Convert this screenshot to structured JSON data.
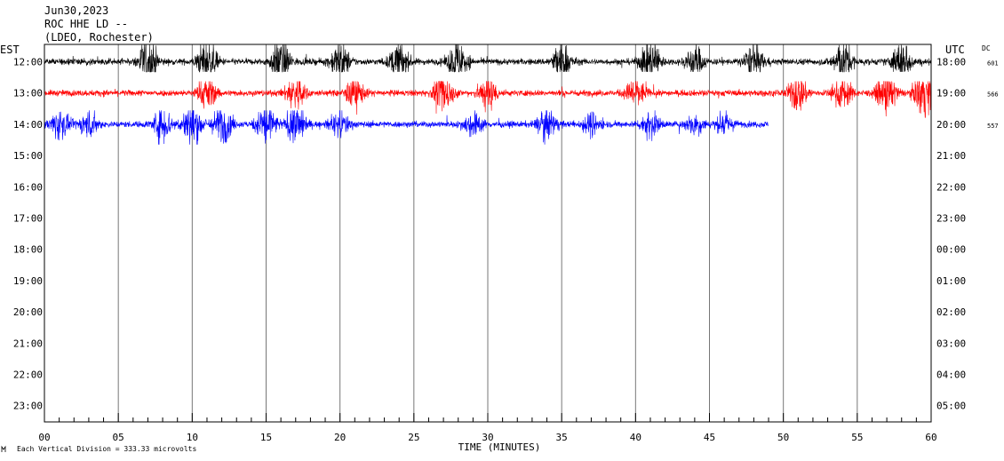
{
  "chart_data": {
    "type": "line",
    "title_lines": [
      "Jun30,2023",
      "ROC HHE LD --",
      "(LDEO, Rochester)"
    ],
    "left_axis_label": "EST",
    "right_axis_label": "UTC",
    "dc_label": "DC",
    "xlabel": "TIME (MINUTES)",
    "x_ticks": [
      "00",
      "05",
      "10",
      "15",
      "20",
      "25",
      "30",
      "35",
      "40",
      "45",
      "50",
      "55",
      "60"
    ],
    "xlim": [
      0,
      60
    ],
    "est_labels": [
      "12:00",
      "13:00",
      "14:00",
      "15:00",
      "16:00",
      "17:00",
      "18:00",
      "19:00",
      "20:00",
      "21:00",
      "22:00",
      "23:00"
    ],
    "utc_labels": [
      "18:00",
      "19:00",
      "20:00",
      "21:00",
      "22:00",
      "23:00",
      "00:00",
      "01:00",
      "02:00",
      "03:00",
      "04:00",
      "05:00"
    ],
    "dc_values": [
      "601",
      "566",
      "557"
    ],
    "footer_note": "Each Vertical Division =  333.33 microvolts",
    "grid_vertical": true,
    "series": [
      {
        "row": 0,
        "color": "#000000",
        "end_minute": 60,
        "bursts": [
          [
            7,
            2.6
          ],
          [
            11,
            2.3
          ],
          [
            16,
            2.4
          ],
          [
            20,
            2.0
          ],
          [
            24,
            1.9
          ],
          [
            28,
            2.3
          ],
          [
            35,
            2.0
          ],
          [
            41,
            2.4
          ],
          [
            44,
            1.6
          ],
          [
            48,
            1.8
          ],
          [
            54,
            2.3
          ],
          [
            58,
            2.0
          ]
        ],
        "min_value": -0.95,
        "max_value": 1.6
      },
      {
        "row": 1,
        "color": "#ff0000",
        "end_minute": 60,
        "bursts": [
          [
            11,
            1.6
          ],
          [
            17,
            1.8
          ],
          [
            21,
            1.5
          ],
          [
            27,
            2.0
          ],
          [
            30,
            1.7
          ],
          [
            40,
            1.6
          ],
          [
            51,
            1.9
          ],
          [
            54,
            1.6
          ],
          [
            57,
            2.2
          ],
          [
            59.5,
            2.4
          ]
        ],
        "min_value": -2.3,
        "max_value": 1.1
      },
      {
        "row": 2,
        "color": "#0000ff",
        "end_minute": 49,
        "bursts": [
          [
            1,
            1.5
          ],
          [
            3,
            1.3
          ],
          [
            8,
            1.8
          ],
          [
            10,
            2.4
          ],
          [
            12,
            2.0
          ],
          [
            15,
            2.3
          ],
          [
            17,
            2.0
          ],
          [
            20,
            1.3
          ],
          [
            29,
            1.2
          ],
          [
            34,
            1.6
          ],
          [
            37,
            1.1
          ],
          [
            41,
            1.3
          ],
          [
            44,
            1.0
          ],
          [
            46,
            0.9
          ]
        ],
        "min_value": -1.9,
        "max_value": 1.3
      }
    ]
  }
}
